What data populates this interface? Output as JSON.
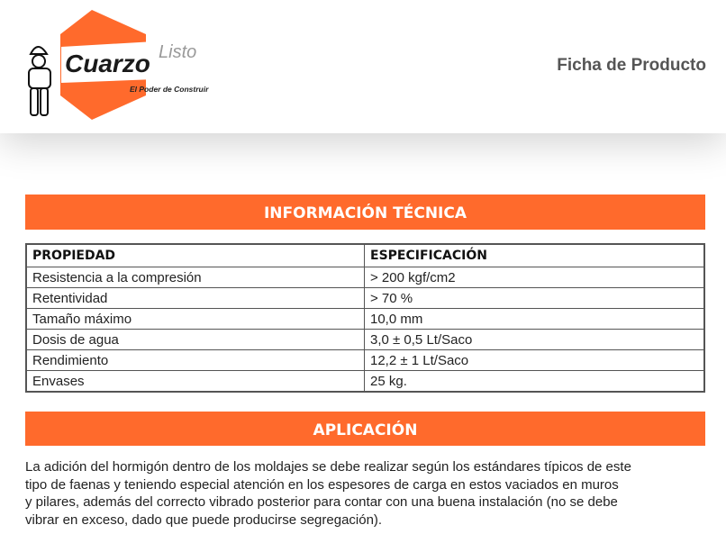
{
  "header": {
    "title": "Ficha de Producto",
    "logo": {
      "brand": "Cuarzo",
      "brand2": "Listo",
      "tagline": "El Poder de Construir"
    }
  },
  "colors": {
    "accent": "#ff6a2c",
    "text": "#222222"
  },
  "tech": {
    "heading": "INFORMACIÓN TÉCNICA",
    "columns": [
      "PROPIEDAD",
      "ESPECIFICACIÓN"
    ],
    "rows": [
      [
        "Resistencia a la compresión",
        "> 200 kgf/cm2"
      ],
      [
        "Retentividad",
        "> 70 %"
      ],
      [
        "Tamaño máximo",
        "10,0 mm"
      ],
      [
        "Dosis de agua",
        "3,0 ± 0,5 Lt/Saco"
      ],
      [
        "Rendimiento",
        "12,2 ± 1 Lt/Saco"
      ],
      [
        "Envases",
        "25 kg."
      ]
    ]
  },
  "application": {
    "heading": "APLICACIÓN",
    "lines": [
      "La adición del hormigón dentro de los moldajes se debe realizar según los estándares típicos de este",
      "tipo de faenas y teniendo especial atención en los espesores de carga en estos vaciados en muros",
      "y pilares, además del correcto vibrado posterior para contar con una buena instalación (no se debe",
      "vibrar en exceso, dado que puede producirse segregación)."
    ]
  }
}
